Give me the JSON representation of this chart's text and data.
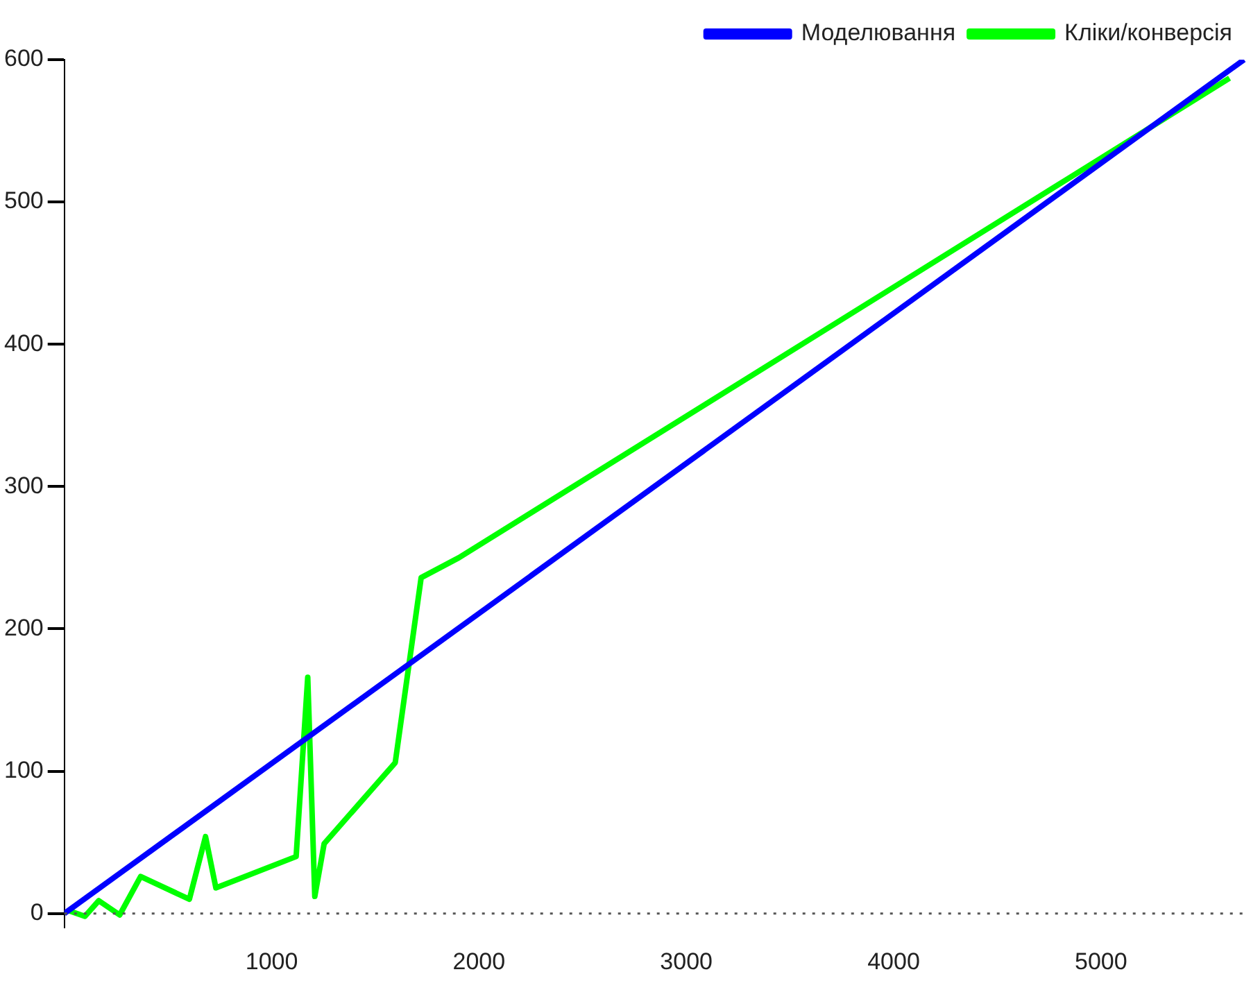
{
  "chart_data": {
    "type": "line",
    "xlim": [
      0,
      5700
    ],
    "ylim": [
      -10,
      600
    ],
    "xticks": [
      1000,
      2000,
      3000,
      4000,
      5000
    ],
    "yticks": [
      0,
      100,
      200,
      300,
      400,
      500,
      600
    ],
    "grid": false,
    "legend": "top right",
    "line_style": "solid",
    "marker": "none",
    "ref_lines": [
      {
        "axis": "y",
        "value": 0,
        "color": "#555555",
        "line_style": "dotted"
      }
    ],
    "series": [
      {
        "name": "Моделювання",
        "color": "#0000ff",
        "x": [
          0,
          5690
        ],
        "values": [
          0,
          600
        ]
      },
      {
        "name": "Кліки/конверсія",
        "color": "#00ff00",
        "x": [
          20,
          99,
          166,
          267,
          368,
          603,
          681,
          731,
          1118,
          1174,
          1208,
          1253,
          1596,
          1721,
          1903,
          5620
        ],
        "values": [
          2,
          -2,
          9,
          -1,
          26,
          10,
          54,
          18,
          40,
          166,
          12,
          49,
          106,
          236,
          250,
          587
        ]
      }
    ]
  }
}
